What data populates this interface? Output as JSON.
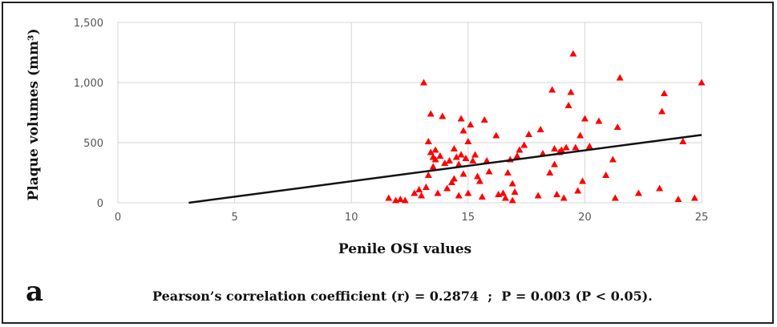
{
  "chart_data": {
    "type": "scatter",
    "xlabel": "Penile OSI values",
    "ylabel": "Plaque volumes (mm³)",
    "xlim": [
      0,
      25
    ],
    "ylim": [
      0,
      1500
    ],
    "xticks": [
      0,
      5,
      10,
      15,
      20,
      25
    ],
    "yticks": [
      0,
      500,
      1000,
      1500
    ],
    "xtick_labels": [
      "0",
      "5",
      "10",
      "15",
      "20",
      "25"
    ],
    "ytick_labels": [
      "0",
      "500",
      "1,000",
      "1,500"
    ],
    "grid": true,
    "marker_color": "#ff0000",
    "trendline": {
      "slope": 25.7,
      "intercept": -78
    },
    "points": [
      [
        11.6,
        40
      ],
      [
        11.9,
        20
      ],
      [
        12.1,
        30
      ],
      [
        12.3,
        20
      ],
      [
        12.7,
        80
      ],
      [
        12.9,
        110
      ],
      [
        13.0,
        60
      ],
      [
        13.1,
        1000
      ],
      [
        13.2,
        130
      ],
      [
        13.3,
        230
      ],
      [
        13.3,
        510
      ],
      [
        13.4,
        740
      ],
      [
        13.4,
        420
      ],
      [
        13.5,
        380
      ],
      [
        13.5,
        300
      ],
      [
        13.6,
        440
      ],
      [
        13.6,
        360
      ],
      [
        13.7,
        80
      ],
      [
        13.8,
        390
      ],
      [
        13.9,
        720
      ],
      [
        14.0,
        330
      ],
      [
        14.1,
        120
      ],
      [
        14.2,
        350
      ],
      [
        14.3,
        170
      ],
      [
        14.4,
        450
      ],
      [
        14.4,
        200
      ],
      [
        14.5,
        380
      ],
      [
        14.6,
        320
      ],
      [
        14.6,
        60
      ],
      [
        14.7,
        400
      ],
      [
        14.7,
        700
      ],
      [
        14.8,
        600
      ],
      [
        14.8,
        240
      ],
      [
        14.9,
        370
      ],
      [
        15.0,
        510
      ],
      [
        15.0,
        80
      ],
      [
        15.1,
        650
      ],
      [
        15.2,
        350
      ],
      [
        15.3,
        400
      ],
      [
        15.4,
        220
      ],
      [
        15.5,
        180
      ],
      [
        15.6,
        50
      ],
      [
        15.7,
        690
      ],
      [
        15.8,
        350
      ],
      [
        15.9,
        260
      ],
      [
        16.2,
        560
      ],
      [
        16.3,
        70
      ],
      [
        16.5,
        80
      ],
      [
        16.6,
        40
      ],
      [
        16.7,
        250
      ],
      [
        16.8,
        360
      ],
      [
        16.9,
        160
      ],
      [
        16.9,
        20
      ],
      [
        17.0,
        90
      ],
      [
        17.1,
        390
      ],
      [
        17.2,
        440
      ],
      [
        17.4,
        480
      ],
      [
        17.6,
        570
      ],
      [
        18.0,
        60
      ],
      [
        18.1,
        610
      ],
      [
        18.2,
        410
      ],
      [
        18.5,
        250
      ],
      [
        18.6,
        940
      ],
      [
        18.7,
        450
      ],
      [
        18.7,
        320
      ],
      [
        18.8,
        70
      ],
      [
        18.9,
        420
      ],
      [
        19.0,
        440
      ],
      [
        19.1,
        40
      ],
      [
        19.2,
        460
      ],
      [
        19.3,
        810
      ],
      [
        19.4,
        920
      ],
      [
        19.5,
        1240
      ],
      [
        19.6,
        460
      ],
      [
        19.7,
        100
      ],
      [
        19.8,
        560
      ],
      [
        19.9,
        180
      ],
      [
        20.0,
        700
      ],
      [
        20.2,
        470
      ],
      [
        20.6,
        680
      ],
      [
        20.9,
        230
      ],
      [
        21.2,
        360
      ],
      [
        21.3,
        40
      ],
      [
        21.4,
        630
      ],
      [
        21.5,
        1040
      ],
      [
        22.3,
        80
      ],
      [
        23.2,
        120
      ],
      [
        23.3,
        760
      ],
      [
        23.4,
        910
      ],
      [
        24.0,
        30
      ],
      [
        24.2,
        510
      ],
      [
        24.7,
        40
      ],
      [
        25.0,
        1000
      ]
    ]
  },
  "figure": {
    "panel_label": "a",
    "footnote": "Pearson’s correlation coefficient (r) = 0.2874  ;  P = 0.003 (P < 0.05)."
  }
}
